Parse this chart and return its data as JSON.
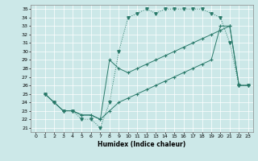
{
  "title": "",
  "xlabel": "Humidex (Indice chaleur)",
  "bg_color": "#cce8e8",
  "line_color": "#2a7a6a",
  "grid_color": "#aad4d4",
  "xlim": [
    -0.5,
    23.5
  ],
  "ylim": [
    20.5,
    35.5
  ],
  "yticks": [
    21,
    22,
    23,
    24,
    25,
    26,
    27,
    28,
    29,
    30,
    31,
    32,
    33,
    34,
    35
  ],
  "xticks": [
    0,
    1,
    2,
    3,
    4,
    5,
    6,
    7,
    8,
    9,
    10,
    11,
    12,
    13,
    14,
    15,
    16,
    17,
    18,
    19,
    20,
    21,
    22,
    23
  ],
  "line1_x": [
    1,
    2,
    3,
    4,
    5,
    6,
    7,
    8,
    9,
    10,
    11,
    12,
    13,
    14,
    15,
    16,
    17,
    18,
    19,
    20,
    21,
    22,
    23
  ],
  "line1_y": [
    25,
    24,
    23,
    23,
    22,
    22,
    21,
    24,
    30,
    34,
    34.5,
    35,
    34.5,
    35,
    35,
    35,
    35,
    35,
    34.5,
    34,
    31,
    26,
    26
  ],
  "line2_x": [
    1,
    2,
    3,
    4,
    5,
    6,
    7,
    8,
    9,
    10,
    11,
    12,
    13,
    14,
    15,
    16,
    17,
    18,
    19,
    20,
    21,
    22,
    23
  ],
  "line2_y": [
    25,
    24,
    23,
    23,
    22.5,
    22.5,
    22,
    23,
    24,
    24.5,
    25,
    25.5,
    26,
    26.5,
    27,
    27.5,
    28,
    28.5,
    29,
    33,
    33,
    26,
    26
  ],
  "line3_x": [
    1,
    2,
    3,
    4,
    5,
    6,
    7,
    8,
    9,
    10,
    11,
    12,
    13,
    14,
    15,
    16,
    17,
    18,
    19,
    20,
    21,
    22,
    23
  ],
  "line3_y": [
    25,
    24,
    23,
    23,
    22.5,
    22.5,
    22,
    29,
    28,
    27.5,
    28,
    28.5,
    29,
    29.5,
    30,
    30.5,
    31,
    31.5,
    32,
    32.5,
    33,
    26,
    26
  ]
}
